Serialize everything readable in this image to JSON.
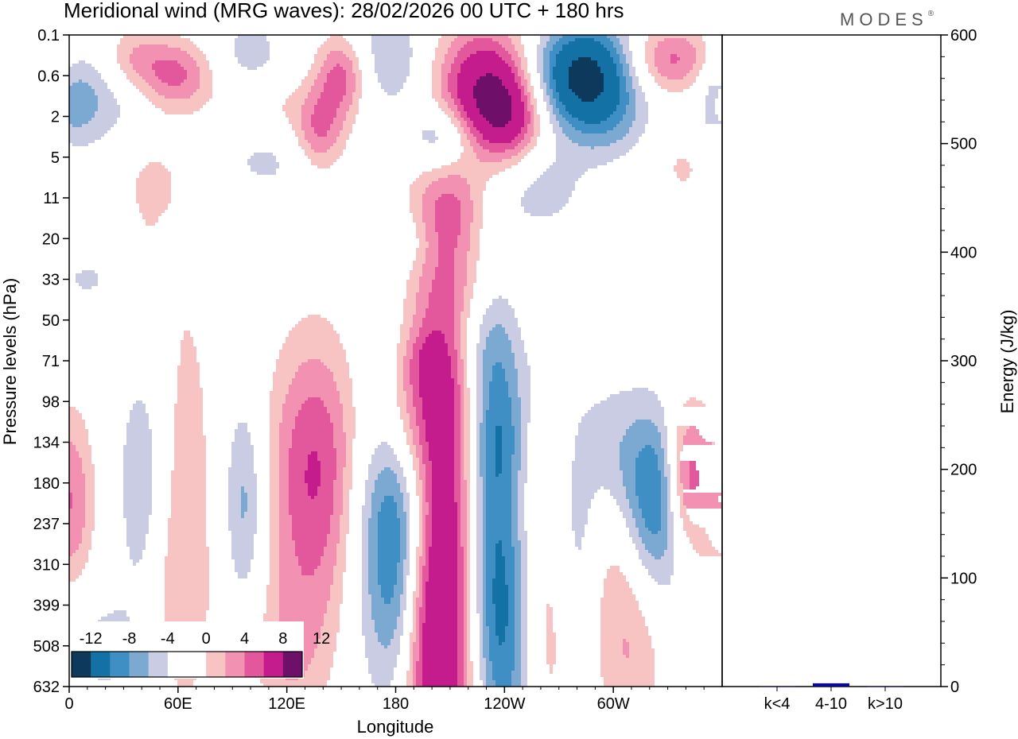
{
  "title": "Meridional wind (MRG waves):  28/02/2026  00 UTC  + 180 hrs",
  "brand": "MODES",
  "brand_mark": "®",
  "colors": {
    "neg4": "#0d3a5c",
    "neg3": "#1471a6",
    "neg2": "#3f8fc4",
    "neg1": "#7ba9d2",
    "neg0": "#c9cce3",
    "zero": "#ffffff",
    "pos0": "#f8c3c3",
    "pos1": "#f291b2",
    "pos2": "#e3589c",
    "pos3": "#c41c8c",
    "pos4": "#6e0f6a",
    "bar": "#0a0a9a"
  },
  "chart_data": [
    {
      "type": "heatmap",
      "title": "Meridional wind (MRG waves)",
      "xlabel": "Longitude",
      "ylabel": "Pressure levels (hPa)",
      "xticks": [
        "0",
        "60E",
        "120E",
        "180",
        "120W",
        "60W"
      ],
      "yticks": [
        "0.1",
        "0.6",
        "2",
        "5",
        "11",
        "20",
        "33",
        "50",
        "71",
        "98",
        "134",
        "180",
        "237",
        "310",
        "399",
        "508",
        "632"
      ],
      "colorbar": {
        "labels": [
          "-12",
          "-8",
          "-4",
          "0",
          "4",
          "8",
          "12"
        ],
        "levels": [
          -14,
          -12,
          -10,
          -8,
          -6,
          -4,
          -2,
          2,
          4,
          6,
          8,
          10,
          12,
          14
        ]
      },
      "blobs": [
        {
          "lon": 207,
          "lev": 12.5,
          "dlon": 16,
          "dlev": 5.5,
          "amp": 15
        },
        {
          "lon": 196,
          "lev": 14.2,
          "dlon": 10,
          "dlev": 2.2,
          "amp": 6
        },
        {
          "lon": 186,
          "lev": 9.4,
          "dlon": 14,
          "dlev": 1.2,
          "amp": 5
        },
        {
          "lon": 185,
          "lev": 11.7,
          "dlon": 18,
          "dlev": 2.6,
          "amp": -11
        },
        {
          "lon": 188,
          "lev": 14.5,
          "dlon": 14,
          "dlev": 2.0,
          "amp": -4
        },
        {
          "lon": 232,
          "lev": 11.5,
          "dlon": 12,
          "dlev": 3.4,
          "amp": -8
        },
        {
          "lon": 238,
          "lev": 15.0,
          "dlon": 14,
          "dlev": 2.4,
          "amp": -6
        },
        {
          "lon": 240,
          "lev": 9.5,
          "dlon": 16,
          "dlev": 1.3,
          "amp": -4
        },
        {
          "lon": 136,
          "lev": 10.5,
          "dlon": 18,
          "dlev": 2.2,
          "amp": 8
        },
        {
          "lon": 130,
          "lev": 14.0,
          "dlon": 18,
          "dlev": 1.8,
          "amp": 2.6
        },
        {
          "lon": 263,
          "lev": 14.8,
          "dlon": 10,
          "dlev": 2.2,
          "amp": 3.4
        },
        {
          "lon": 258,
          "lev": 9.8,
          "dlon": 12,
          "dlev": 2.0,
          "amp": 2.6
        },
        {
          "lon": 302,
          "lev": 10.2,
          "dlon": 14,
          "dlev": 1.5,
          "amp": -5
        },
        {
          "lon": 322,
          "lev": 11.5,
          "dlon": 14,
          "dlev": 1.6,
          "amp": -10
        },
        {
          "lon": 340,
          "lev": 10.9,
          "dlon": 8,
          "dlev": 1.3,
          "amp": 9
        },
        {
          "lon": 307,
          "lev": 12.0,
          "dlon": 14,
          "dlev": 2.4,
          "amp": 5.5
        },
        {
          "lon": 280,
          "lev": 12.5,
          "dlon": 8,
          "dlev": 2.2,
          "amp": -3
        },
        {
          "lon": 97,
          "lev": 11.5,
          "dlon": 8,
          "dlev": 1.8,
          "amp": -5
        },
        {
          "lon": 39,
          "lev": 11.0,
          "dlon": 8,
          "dlev": 1.8,
          "amp": -4
        },
        {
          "lon": 66,
          "lev": 10.2,
          "dlon": 10,
          "dlev": 3.2,
          "amp": 2.8
        },
        {
          "lon": 1,
          "lev": 11.5,
          "dlon": 9,
          "dlev": 1.6,
          "amp": 6
        },
        {
          "lon": 20,
          "lev": 15.0,
          "dlon": 22,
          "dlev": 1.2,
          "amp": -2.6
        },
        {
          "lon": 60,
          "lev": 14.4,
          "dlon": 14,
          "dlev": 2.0,
          "amp": 2.6
        },
        {
          "lon": 120,
          "lev": 15.6,
          "dlon": 14,
          "dlev": 1.2,
          "amp": 2.4
        },
        {
          "lon": 310,
          "lev": 15.8,
          "dlon": 14,
          "dlev": 1.6,
          "amp": 2.4
        },
        {
          "lon": 196,
          "lev": 8.0,
          "dlon": 10,
          "dlev": 0.6,
          "amp": 2.6
        },
        {
          "lon": 226,
          "lev": 7.5,
          "dlon": 16,
          "dlev": 0.8,
          "amp": -2.6
        },
        {
          "lon": 265,
          "lev": 8.4,
          "dlon": 8,
          "dlev": 0.7,
          "amp": -2.4
        },
        {
          "lon": 178,
          "lev": 0.6,
          "dlon": 16,
          "dlev": 0.9,
          "amp": -4
        },
        {
          "lon": 150,
          "lev": 1.0,
          "dlon": 10,
          "dlev": 0.7,
          "amp": 7
        },
        {
          "lon": 138,
          "lev": 2.4,
          "dlon": 10,
          "dlev": 0.7,
          "amp": 6
        },
        {
          "lon": 232,
          "lev": 1.4,
          "dlon": 18,
          "dlev": 1.1,
          "amp": 12
        },
        {
          "lon": 243,
          "lev": 2.1,
          "dlon": 14,
          "dlev": 0.7,
          "amp": 5
        },
        {
          "lon": 207,
          "lev": 2.5,
          "dlon": 14,
          "dlev": 0.6,
          "amp": -7
        },
        {
          "lon": 284,
          "lev": 1.0,
          "dlon": 20,
          "dlev": 0.9,
          "amp": -14
        },
        {
          "lon": 332,
          "lev": 0.6,
          "dlon": 18,
          "dlev": 0.6,
          "amp": 7
        },
        {
          "lon": 35,
          "lev": 0.6,
          "dlon": 14,
          "dlev": 0.6,
          "amp": 5
        },
        {
          "lon": 60,
          "lev": 1.0,
          "dlon": 14,
          "dlev": 0.6,
          "amp": 6
        },
        {
          "lon": 15,
          "lev": 1.4,
          "dlon": 20,
          "dlev": 1.0,
          "amp": -4
        },
        {
          "lon": 100,
          "lev": 0.5,
          "dlon": 14,
          "dlev": 0.7,
          "amp": -3
        },
        {
          "lon": 360,
          "lev": 1.8,
          "dlon": 10,
          "dlev": 0.9,
          "amp": -3
        },
        {
          "lon": 260,
          "lev": 3.8,
          "dlon": 18,
          "dlev": 0.8,
          "amp": -3
        },
        {
          "lon": 45,
          "lev": 3.5,
          "dlon": 16,
          "dlev": 1.0,
          "amp": 2.4
        },
        {
          "lon": 210,
          "lev": 4.3,
          "dlon": 12,
          "dlev": 0.7,
          "amp": 2.4
        },
        {
          "lon": 110,
          "lev": 3.0,
          "dlon": 20,
          "dlev": 0.7,
          "amp": -2.6
        },
        {
          "lon": 340,
          "lev": 3.0,
          "dlon": 18,
          "dlev": 1.0,
          "amp": 2.6
        },
        {
          "lon": 300,
          "lev": 2.3,
          "dlon": 20,
          "dlev": 0.7,
          "amp": -2.6
        },
        {
          "lon": 110,
          "lev": 1.8,
          "dlon": 20,
          "dlev": 0.6,
          "amp": 2.4
        },
        {
          "lon": 40,
          "lev": 6.0,
          "dlon": 14,
          "dlev": 0.9,
          "amp": 2.4
        },
        {
          "lon": 15,
          "lev": 6.0,
          "dlon": 18,
          "dlev": 0.5,
          "amp": -2.6
        },
        {
          "lon": 185,
          "lev": 5.1,
          "dlon": 12,
          "dlev": 0.5,
          "amp": -2.4
        }
      ]
    },
    {
      "type": "bar",
      "ylabel": "Energy (J/kg)",
      "categories": [
        "k<4",
        "4-10",
        "k>10"
      ],
      "values": [
        0.2,
        3,
        0.2
      ],
      "ylim": [
        0,
        600
      ],
      "yticks": [
        "0",
        "100",
        "200",
        "300",
        "400",
        "500",
        "600"
      ]
    }
  ]
}
